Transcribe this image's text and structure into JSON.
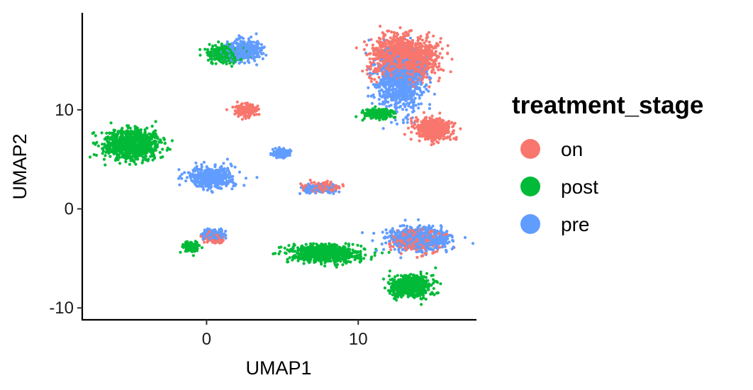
{
  "chart_data": {
    "type": "scatter",
    "title": "",
    "xlabel": "UMAP1",
    "ylabel": "UMAP2",
    "xlim": [
      -8.2,
      17.8
    ],
    "ylim": [
      -11.2,
      19.8
    ],
    "x_ticks": [
      0,
      10
    ],
    "y_ticks": [
      -10,
      0,
      10
    ],
    "x_tick_labels": [
      "0",
      "10"
    ],
    "y_tick_labels": [
      "-10",
      "0",
      "10"
    ],
    "grid": false,
    "legend": {
      "title": "treatment_stage",
      "position": "right",
      "entries": [
        "on",
        "post",
        "pre"
      ]
    },
    "colors": {
      "on": "#F8766D",
      "post": "#00BA38",
      "pre": "#619CFF"
    },
    "series": [
      {
        "name": "on",
        "clusters": [
          {
            "cx": 13.0,
            "cy": 15.2,
            "sx": 1.6,
            "sy": 1.6,
            "weight": 0.55
          },
          {
            "cx": 15.0,
            "cy": 8.0,
            "sx": 0.9,
            "sy": 0.8,
            "weight": 0.2
          },
          {
            "cx": 13.8,
            "cy": -3.2,
            "sx": 1.2,
            "sy": 0.9,
            "weight": 0.1
          },
          {
            "cx": 2.6,
            "cy": 10.0,
            "sx": 0.6,
            "sy": 0.5,
            "weight": 0.05
          },
          {
            "cx": 7.7,
            "cy": 2.2,
            "sx": 0.9,
            "sy": 0.35,
            "weight": 0.05
          },
          {
            "cx": 0.4,
            "cy": -2.9,
            "sx": 0.6,
            "sy": 0.4,
            "weight": 0.05
          }
        ]
      },
      {
        "name": "post",
        "clusters": [
          {
            "cx": -4.9,
            "cy": 6.5,
            "sx": 1.5,
            "sy": 1.2,
            "weight": 0.3
          },
          {
            "cx": 7.8,
            "cy": -4.5,
            "sx": 1.8,
            "sy": 0.7,
            "weight": 0.25
          },
          {
            "cx": 13.5,
            "cy": -7.8,
            "sx": 1.0,
            "sy": 0.9,
            "weight": 0.2
          },
          {
            "cx": 1.2,
            "cy": 15.6,
            "sx": 0.9,
            "sy": 0.7,
            "weight": 0.1
          },
          {
            "cx": -1.0,
            "cy": -3.8,
            "sx": 0.4,
            "sy": 0.4,
            "weight": 0.05
          },
          {
            "cx": 11.3,
            "cy": 9.6,
            "sx": 0.7,
            "sy": 0.4,
            "weight": 0.1
          }
        ]
      },
      {
        "name": "pre",
        "clusters": [
          {
            "cx": 12.8,
            "cy": 13.0,
            "sx": 1.2,
            "sy": 2.4,
            "weight": 0.3
          },
          {
            "cx": 14.0,
            "cy": -3.0,
            "sx": 1.6,
            "sy": 0.9,
            "weight": 0.25
          },
          {
            "cx": 2.4,
            "cy": 16.0,
            "sx": 1.0,
            "sy": 0.8,
            "weight": 0.12
          },
          {
            "cx": 0.3,
            "cy": 3.2,
            "sx": 1.2,
            "sy": 0.9,
            "weight": 0.13
          },
          {
            "cx": 4.9,
            "cy": 5.6,
            "sx": 0.4,
            "sy": 0.35,
            "weight": 0.07
          },
          {
            "cx": 7.4,
            "cy": 2.0,
            "sx": 0.9,
            "sy": 0.3,
            "weight": 0.06
          },
          {
            "cx": 0.5,
            "cy": -2.6,
            "sx": 0.6,
            "sy": 0.4,
            "weight": 0.07
          }
        ]
      }
    ]
  }
}
